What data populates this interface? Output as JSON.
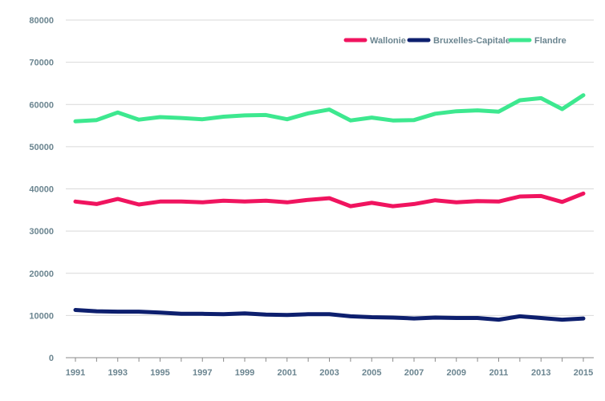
{
  "chart_data": {
    "type": "line",
    "title": "",
    "xlabel": "",
    "ylabel": "",
    "x": [
      1991,
      1992,
      1993,
      1994,
      1995,
      1996,
      1997,
      1998,
      1999,
      2000,
      2001,
      2002,
      2003,
      2004,
      2005,
      2006,
      2007,
      2008,
      2009,
      2010,
      2011,
      2012,
      2013,
      2014,
      2015
    ],
    "x_tick_labels": [
      "1991",
      "1993",
      "1995",
      "1997",
      "1999",
      "2001",
      "2003",
      "2005",
      "2007",
      "2009",
      "2011",
      "2013",
      "2015"
    ],
    "y_tick_labels": [
      "0",
      "10000",
      "20000",
      "30000",
      "40000",
      "50000",
      "60000",
      "70000",
      "80000"
    ],
    "ylim": [
      0,
      80000
    ],
    "grid": true,
    "legend_position": "top-right",
    "series": [
      {
        "name": "Wallonie",
        "color": "#f0145f",
        "values": [
          37000,
          36400,
          37600,
          36300,
          37000,
          37000,
          36800,
          37200,
          37000,
          37200,
          36800,
          37400,
          37800,
          35900,
          36700,
          35900,
          36400,
          37300,
          36800,
          37100,
          37000,
          38200,
          38300,
          36900,
          38900
        ]
      },
      {
        "name": "Bruxelles-Capitale",
        "color": "#0d1f6e",
        "values": [
          11300,
          11000,
          10900,
          10900,
          10700,
          10400,
          10400,
          10300,
          10500,
          10200,
          10100,
          10300,
          10300,
          9800,
          9600,
          9500,
          9300,
          9500,
          9400,
          9400,
          9000,
          9800,
          9400,
          9000,
          9300
        ]
      },
      {
        "name": "Flandre",
        "color": "#3de88f",
        "values": [
          56000,
          56300,
          58100,
          56400,
          57000,
          56800,
          56500,
          57100,
          57400,
          57500,
          56500,
          57900,
          58800,
          56200,
          56900,
          56200,
          56300,
          57800,
          58400,
          58600,
          58300,
          61000,
          61500,
          58900,
          62200
        ]
      }
    ]
  }
}
